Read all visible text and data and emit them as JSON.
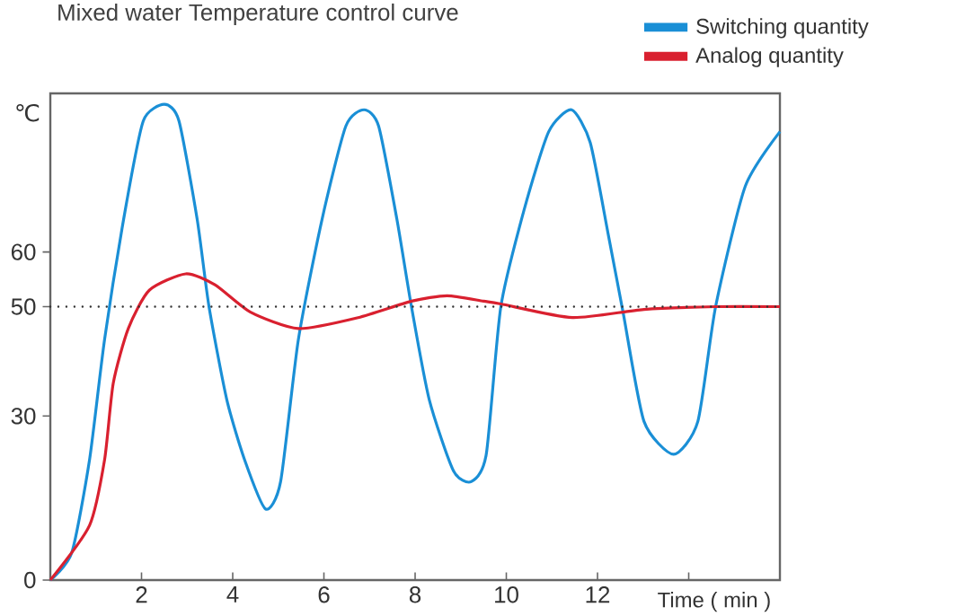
{
  "chart_data": {
    "type": "line",
    "title": "Mixed water Temperature control curve",
    "xlabel": "Time ( min )",
    "ylabel": "℃",
    "xlim": [
      0,
      16
    ],
    "ylim": [
      0,
      89
    ],
    "xticks": [
      2,
      4,
      6,
      8,
      10,
      12,
      {
        "value": 14,
        "label": null
      }
    ],
    "yticks": [
      0,
      30,
      50,
      60
    ],
    "legend": "top right",
    "grid": false,
    "ref_lines": [
      {
        "axis": "y",
        "value": 50,
        "line_style": "dotted",
        "color": "#333333"
      }
    ],
    "series": [
      {
        "name": "Switching quantity",
        "color": "#1a8fd6",
        "x": [
          0,
          0.47,
          0.86,
          1.19,
          1.65,
          2.04,
          2.5,
          2.82,
          3.22,
          3.48,
          3.87,
          4.26,
          4.72,
          5.05,
          5.44,
          5.96,
          6.48,
          6.88,
          7.2,
          7.6,
          7.92,
          8.31,
          8.84,
          9.23,
          9.56,
          9.88,
          10.4,
          10.93,
          11.43,
          11.84,
          12.24,
          12.56,
          13.02,
          13.67,
          14.2,
          14.59,
          15.24,
          16
        ],
        "values": [
          0,
          5,
          22,
          44,
          68,
          84,
          87,
          84,
          66,
          50,
          33,
          22,
          13,
          18,
          44,
          66,
          83,
          86,
          83,
          66,
          50,
          33,
          20,
          18,
          23,
          50,
          68,
          82,
          86,
          80,
          63,
          49,
          29,
          23,
          29,
          50,
          72,
          82
        ]
      },
      {
        "name": "Analog quantity",
        "color": "#d9202f",
        "x": [
          0,
          0.86,
          1.19,
          1.38,
          1.71,
          2.17,
          2.97,
          3.61,
          4.39,
          5.44,
          6.75,
          7.92,
          8.7,
          9.5,
          9.88,
          11.45,
          13.02,
          14.59,
          16
        ],
        "values": [
          0,
          10,
          22,
          36,
          46,
          53,
          56,
          54,
          49,
          46,
          48,
          51,
          52,
          51,
          50.5,
          48,
          49.5,
          50,
          50
        ]
      }
    ]
  }
}
